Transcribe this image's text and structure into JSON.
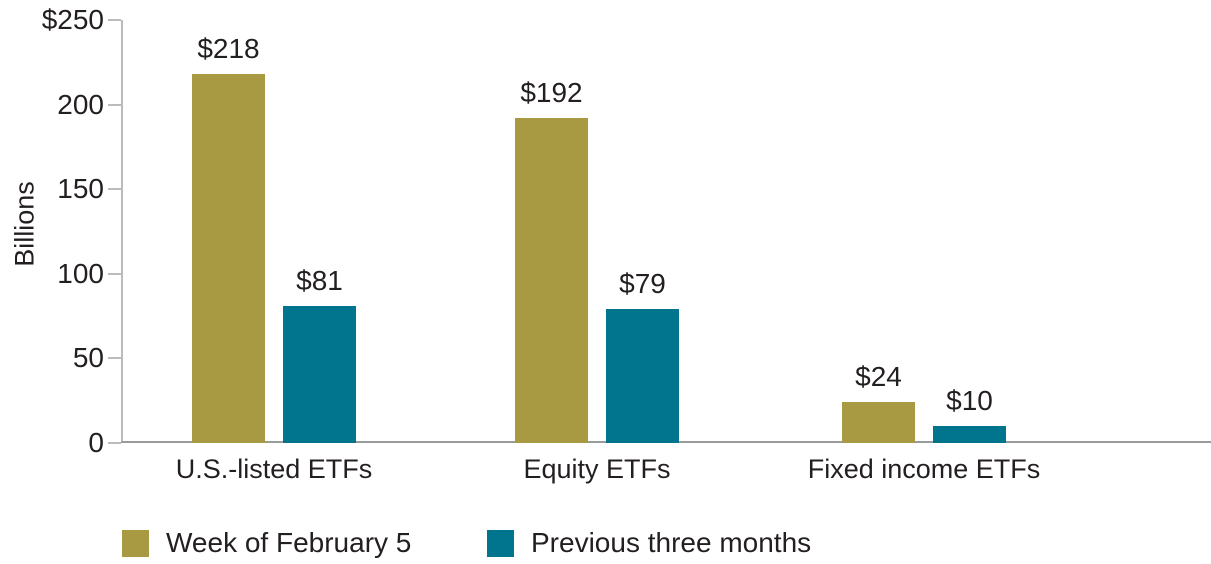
{
  "chart_data": {
    "type": "bar",
    "title": "",
    "ylabel": "Billions",
    "xlabel": "",
    "ylim": [
      0,
      250
    ],
    "grid": false,
    "legend_position": "bottom",
    "categories": [
      "U.S.-listed ETFs",
      "Equity ETFs",
      "Fixed income ETFs"
    ],
    "series": [
      {
        "name": "Week of February 5",
        "color": "#A89943",
        "values": [
          218,
          192,
          24
        ],
        "labels": [
          "$218",
          "$192",
          "$24"
        ]
      },
      {
        "name": "Previous three months",
        "color": "#00758D",
        "values": [
          81,
          79,
          10
        ],
        "labels": [
          "$81",
          "$79",
          "$10"
        ]
      }
    ],
    "y_ticks": [
      {
        "value": 250,
        "label": "$250"
      },
      {
        "value": 200,
        "label": "200"
      },
      {
        "value": 150,
        "label": "150"
      },
      {
        "value": 100,
        "label": "100"
      },
      {
        "value": 50,
        "label": "50"
      },
      {
        "value": 0,
        "label": "0"
      }
    ]
  },
  "colors": {
    "series_gold": "#A89943",
    "series_teal": "#00758D",
    "text": "#231F20",
    "axis_line": "#BBBBBB",
    "baseline": "#9B9B9B"
  }
}
